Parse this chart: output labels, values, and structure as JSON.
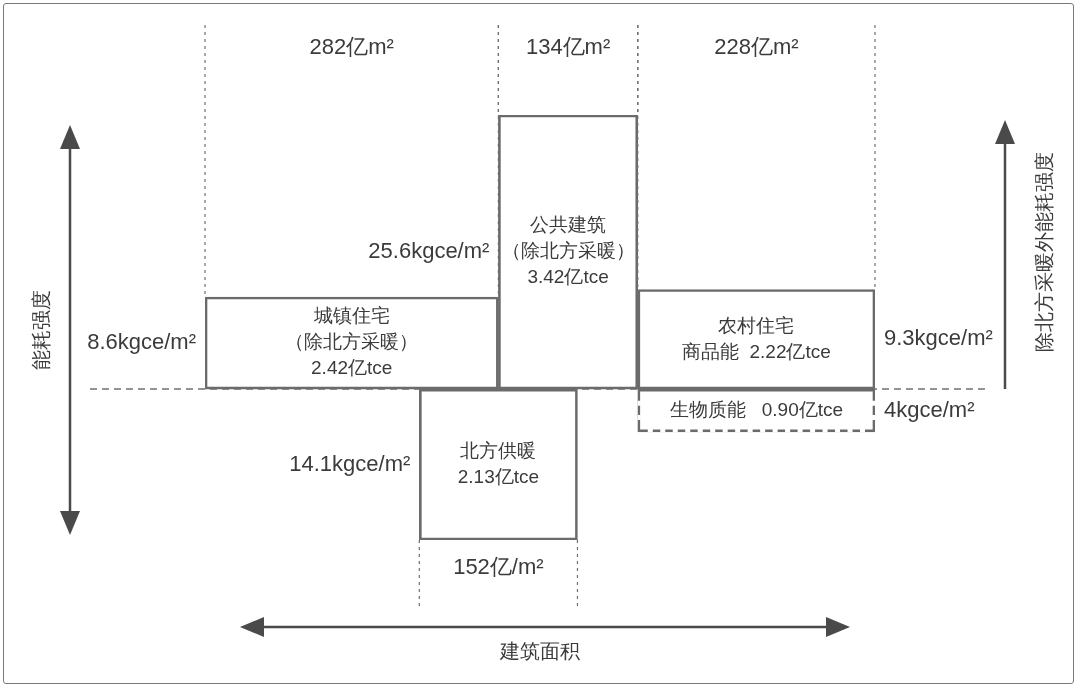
{
  "chart_data": {
    "type": "other",
    "xlabel": "建筑面积",
    "ylabel": "能耗强度",
    "y2label": "除北方采暖外能耗强度",
    "categories": [
      "城镇住宅（除北方采暖）",
      "公共建筑（除北方采暖）",
      "北方供暖",
      "农村住宅",
      "生物质能"
    ],
    "series": [
      {
        "values": [
          8.6,
          25.6,
          null,
          9.3,
          null
        ],
        "value_labels": [
          "8.6kgce/m²",
          "25.6kgce/m²",
          null,
          "9.3kgce/m²",
          null
        ]
      },
      {
        "values": [
          null,
          null,
          14.1,
          null,
          4
        ],
        "value_labels": [
          null,
          null,
          "14.1kgce/m²",
          null,
          "4kgce/m²"
        ]
      },
      {
        "values": [
          282,
          134,
          152,
          228,
          null
        ],
        "value_labels": [
          "282亿m²",
          "134亿m²",
          "152亿/m²",
          "228亿m²",
          null
        ]
      },
      {
        "color": "#6b6b6b",
        "values": [
          2.42,
          3.42,
          2.13,
          2.22,
          0.9
        ],
        "value_labels": [
          "2.42亿tce",
          "3.42亿tce",
          "2.13亿tce",
          "商品能  2.22亿tce",
          "0.90亿tce"
        ]
      }
    ]
  }
}
